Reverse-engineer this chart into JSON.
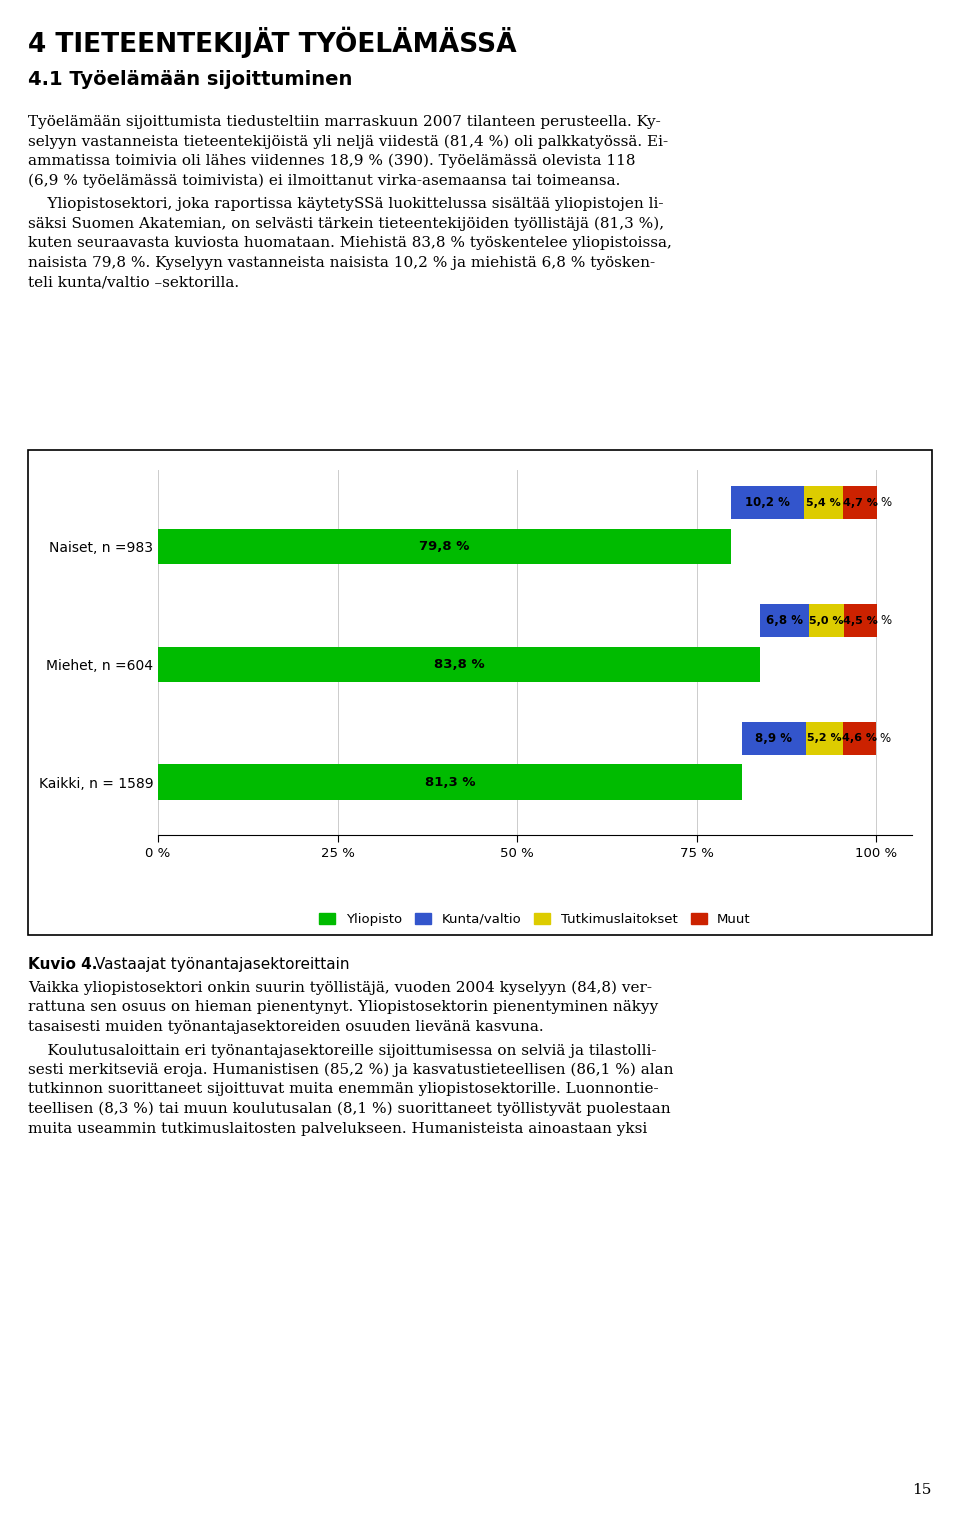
{
  "title1": "4 TIETEENTEKIJÄT TYÖELÄMÄSSÄ",
  "title2": "4.1 Työelämään sijoittuminen",
  "page_number": "15",
  "categories": [
    "Kaikki, n = 1589",
    "Miehet, n =604",
    "Naiset, n =983"
  ],
  "yliopisto": [
    81.3,
    83.8,
    79.8
  ],
  "kunta_valtio": [
    8.9,
    6.8,
    10.2
  ],
  "tutkimuslaitokset": [
    5.2,
    5.0,
    5.4
  ],
  "muut": [
    4.6,
    4.5,
    4.7
  ],
  "color_yliopisto": "#00bb00",
  "color_kunta": "#3355cc",
  "color_tutkimus": "#ddcc00",
  "color_muut": "#cc2200",
  "bg_color": "#ffffff",
  "xticks": [
    0,
    25,
    50,
    75,
    100
  ],
  "xtick_labels": [
    "0 %",
    "25 %",
    "50 %",
    "75 %",
    "100 %"
  ],
  "legend_labels": [
    "Yliopisto",
    "Kunta/valtio",
    "Tutkimuslaitokset",
    "Muut"
  ],
  "caption_bold": "Kuvio 4.",
  "caption_normal": " Vastaajat työnantajasektoreittain",
  "body1_line1": "Työelämään sijoittumista tiedusteltiin marraskuun 2007 tilanteen perusteella. Ky-",
  "body1_line2": "selyyn vastanneista tieteentekijöistä yli neljä viidestä (81,4 %) oli palkkatyössä. Ei-",
  "body1_line3": "ammatissa toimivia oli lähes viidennes 18,9 % (390). Työelämässä olevista 118",
  "body1_line4": "(6,9 % työelämässä toimivista) ei ilmoittanut virka-asemaansa tai toimeansa.",
  "body2_line1": "    Yliopistosektori, joka raportissa käytetySSä luokittelussa sisältää yliopistojen li-",
  "body2_line2": "säksi Suomen Akatemian, on selvästi tärkein tieteentekijöiden työllistäjä (81,3 %),",
  "body2_line3": "kuten seuraavasta kuviosta huomataan. Miehistä 83,8 % työskentelee yliopistoissa,",
  "body2_line4": "naisista 79,8 %. Kyselyyn vastanneista naisista 10,2 % ja miehistä 6,8 % työsken-",
  "body2_line5": "teli kunta/valtio –sektorilla.",
  "body3_line1": "Vaikka yliopistosektori onkin suurin työllistäjä, vuoden 2004 kyselyyn (84,8) ver-",
  "body3_line2": "rattuna sen osuus on hieman pienentynyt. Yliopistosektorin pienentyminen näkyy",
  "body3_line3": "tasaisesti muiden työnantajasektoreiden osuuden lievänä kasvuna.",
  "body4_line1": "    Koulutusaloittain eri työnantajasektoreille sijoittumisessa on selviä ja tilastolli-",
  "body4_line2": "sesti merkitseviä eroja. Humanistisen (85,2 %) ja kasvatustieteellisen (86,1 %) alan",
  "body4_line3": "tutkinnon suorittaneet sijoittuvat muita enemmän yliopistosektorille. Luonnontie-",
  "body4_line4": "teellisen (8,3 %) tai muun koulutusalan (8,1 %) suorittaneet työllistyvät puolestaan",
  "body4_line5": "muita useammin tutkimuslaitosten palvelukseen. Humanisteista ainoastaan yksi"
}
